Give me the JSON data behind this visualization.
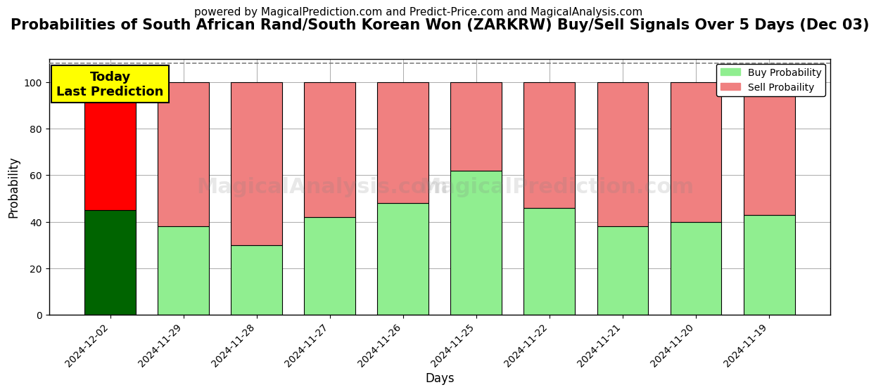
{
  "title": "Probabilities of South African Rand/South Korean Won (ZARKRW) Buy/Sell Signals Over 5 Days (Dec 03)",
  "subtitle": "powered by MagicalPrediction.com and Predict-Price.com and MagicalAnalysis.com",
  "xlabel": "Days",
  "ylabel": "Probability",
  "categories": [
    "2024-12-02",
    "2024-11-29",
    "2024-11-28",
    "2024-11-27",
    "2024-11-26",
    "2024-11-25",
    "2024-11-22",
    "2024-11-21",
    "2024-11-20",
    "2024-11-19"
  ],
  "buy_values": [
    45,
    38,
    30,
    42,
    48,
    62,
    46,
    38,
    40,
    43
  ],
  "sell_values": [
    55,
    62,
    70,
    58,
    52,
    38,
    54,
    62,
    60,
    57
  ],
  "buy_colors_today": "#006400",
  "sell_colors_today": "#ff0000",
  "buy_colors_rest": "#90ee90",
  "sell_colors_rest": "#f08080",
  "bar_edge_color": "#000000",
  "ylim": [
    0,
    110
  ],
  "yticks": [
    0,
    20,
    40,
    60,
    80,
    100
  ],
  "dashed_line_y": 108,
  "today_label": "Today\nLast Prediction",
  "legend_buy": "Buy Probability",
  "legend_sell": "Sell Probaility",
  "watermark_texts": [
    "MagicalAnalysis.com",
    "MagicalPrediction.com"
  ],
  "background_color": "#ffffff",
  "grid_color": "#aaaaaa",
  "title_fontsize": 15,
  "subtitle_fontsize": 11,
  "axis_label_fontsize": 12,
  "tick_fontsize": 10
}
